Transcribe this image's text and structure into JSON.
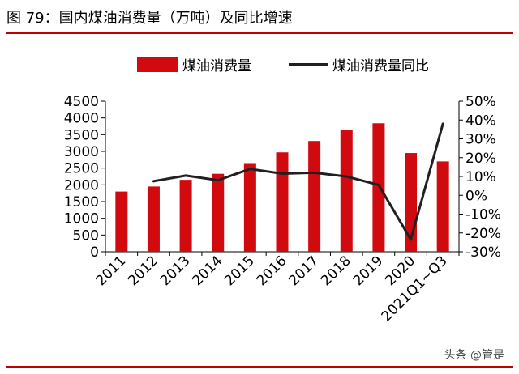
{
  "figure": {
    "title": "图 79：国内煤油消费量（万吨）及同比增速",
    "source": "头条 @管是",
    "colors": {
      "bar": "#d10a10",
      "line": "#231f20",
      "rule": "#c00000"
    }
  },
  "chart_data": {
    "type": "bar+line",
    "categories": [
      "2011",
      "2012",
      "2013",
      "2014",
      "2015",
      "2016",
      "2017",
      "2018",
      "2019",
      "2020",
      "2021Q1~Q3"
    ],
    "series": [
      {
        "name": "煤油消费量",
        "type": "bar",
        "axis": "left",
        "values": [
          1800,
          1950,
          2150,
          2330,
          2650,
          2970,
          3310,
          3650,
          3840,
          2950,
          2700
        ]
      },
      {
        "name": "煤油消费量同比",
        "type": "line",
        "axis": "right",
        "values": [
          null,
          7.5,
          10.5,
          8,
          14,
          11.5,
          12,
          10,
          5.5,
          -23.5,
          38
        ]
      }
    ],
    "left_axis": {
      "min": 0,
      "max": 4500,
      "step": 500,
      "ticks": [
        "0",
        "500",
        "1000",
        "1500",
        "2000",
        "2500",
        "3000",
        "3500",
        "4000",
        "4500"
      ]
    },
    "right_axis": {
      "min": -30,
      "max": 50,
      "step": 10,
      "ticks": [
        "-30%",
        "-20%",
        "-10%",
        "0%",
        "10%",
        "20%",
        "30%",
        "40%",
        "50%"
      ]
    },
    "legend_position": "top-center",
    "grid": false
  }
}
